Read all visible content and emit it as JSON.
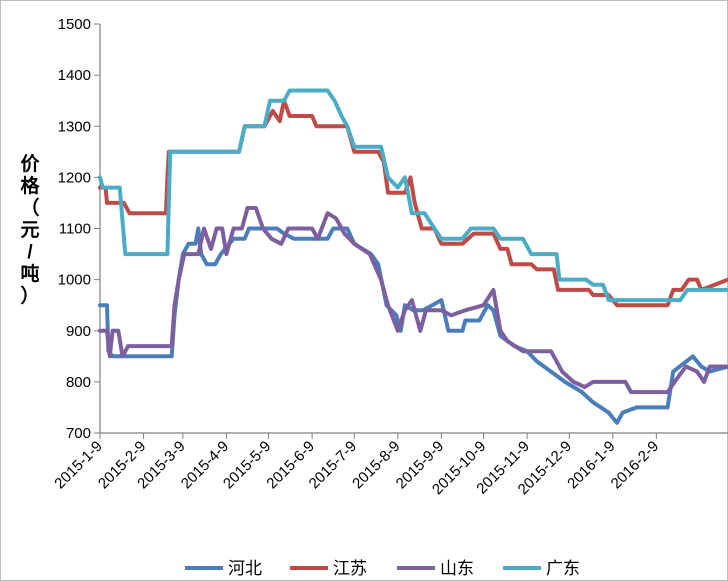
{
  "chart_data": {
    "type": "line",
    "title": "",
    "ylabel": "价格（元/吨）",
    "xlabel": "",
    "ylim": [
      700,
      1500
    ],
    "yticks": [
      700,
      800,
      900,
      1000,
      1100,
      1200,
      1300,
      1400,
      1500
    ],
    "x_range": [
      "2015-01-09",
      "2016-03-31"
    ],
    "x_tick_labels": [
      "2015-1-9",
      "2015-2-9",
      "2015-3-9",
      "2015-4-9",
      "2015-5-9",
      "2015-6-9",
      "2015-7-9",
      "2015-8-9",
      "2015-9-9",
      "2015-10-9",
      "2015-11-9",
      "2015-12-9",
      "2016-1-9",
      "2016-2-9"
    ],
    "x_tick_dates": [
      "2015-01-09",
      "2015-02-09",
      "2015-03-09",
      "2015-04-09",
      "2015-05-09",
      "2015-06-09",
      "2015-07-09",
      "2015-08-09",
      "2015-09-09",
      "2015-10-09",
      "2015-11-09",
      "2015-12-09",
      "2016-01-09",
      "2016-02-09"
    ],
    "grid": false,
    "legend_position": "bottom",
    "series": [
      {
        "name": "河北",
        "color": "#4a7ebb",
        "points": [
          [
            "2015-01-09",
            950
          ],
          [
            "2015-01-14",
            950
          ],
          [
            "2015-01-15",
            860
          ],
          [
            "2015-01-18",
            850
          ],
          [
            "2015-02-20",
            850
          ],
          [
            "2015-03-01",
            850
          ],
          [
            "2015-03-03",
            930
          ],
          [
            "2015-03-06",
            1000
          ],
          [
            "2015-03-09",
            1050
          ],
          [
            "2015-03-13",
            1070
          ],
          [
            "2015-03-18",
            1070
          ],
          [
            "2015-03-20",
            1100
          ],
          [
            "2015-03-22",
            1050
          ],
          [
            "2015-03-26",
            1030
          ],
          [
            "2015-04-01",
            1030
          ],
          [
            "2015-04-05",
            1050
          ],
          [
            "2015-04-14",
            1080
          ],
          [
            "2015-04-22",
            1080
          ],
          [
            "2015-04-25",
            1100
          ],
          [
            "2015-05-15",
            1100
          ],
          [
            "2015-05-20",
            1090
          ],
          [
            "2015-05-27",
            1080
          ],
          [
            "2015-06-20",
            1080
          ],
          [
            "2015-06-24",
            1100
          ],
          [
            "2015-07-04",
            1100
          ],
          [
            "2015-07-09",
            1070
          ],
          [
            "2015-07-21",
            1050
          ],
          [
            "2015-07-26",
            1030
          ],
          [
            "2015-08-01",
            950
          ],
          [
            "2015-08-08",
            930
          ],
          [
            "2015-08-11",
            900
          ],
          [
            "2015-08-14",
            950
          ],
          [
            "2015-08-20",
            940
          ],
          [
            "2015-08-27",
            940
          ],
          [
            "2015-09-09",
            960
          ],
          [
            "2015-09-14",
            900
          ],
          [
            "2015-09-24",
            900
          ],
          [
            "2015-09-26",
            920
          ],
          [
            "2015-10-06",
            920
          ],
          [
            "2015-10-12",
            950
          ],
          [
            "2015-10-16",
            940
          ],
          [
            "2015-10-21",
            890
          ],
          [
            "2015-10-31",
            870
          ],
          [
            "2015-11-09",
            860
          ],
          [
            "2015-11-16",
            840
          ],
          [
            "2015-11-26",
            820
          ],
          [
            "2015-12-06",
            800
          ],
          [
            "2015-12-12",
            790
          ],
          [
            "2015-12-18",
            780
          ],
          [
            "2015-12-26",
            760
          ],
          [
            "2016-01-06",
            740
          ],
          [
            "2016-01-12",
            720
          ],
          [
            "2016-01-16",
            740
          ],
          [
            "2016-01-26",
            750
          ],
          [
            "2016-02-17",
            750
          ],
          [
            "2016-02-21",
            820
          ],
          [
            "2016-03-06",
            850
          ],
          [
            "2016-03-12",
            830
          ],
          [
            "2016-03-18",
            820
          ],
          [
            "2016-03-31",
            830
          ]
        ]
      },
      {
        "name": "江苏",
        "color": "#be4b48",
        "points": [
          [
            "2015-01-09",
            1180
          ],
          [
            "2015-01-13",
            1180
          ],
          [
            "2015-01-14",
            1150
          ],
          [
            "2015-01-26",
            1150
          ],
          [
            "2015-01-30",
            1130
          ],
          [
            "2015-02-25",
            1130
          ],
          [
            "2015-02-26",
            1200
          ],
          [
            "2015-02-27",
            1250
          ],
          [
            "2015-04-18",
            1250
          ],
          [
            "2015-04-22",
            1300
          ],
          [
            "2015-05-06",
            1300
          ],
          [
            "2015-05-12",
            1330
          ],
          [
            "2015-05-17",
            1310
          ],
          [
            "2015-05-20",
            1350
          ],
          [
            "2015-05-24",
            1320
          ],
          [
            "2015-06-09",
            1320
          ],
          [
            "2015-06-12",
            1300
          ],
          [
            "2015-07-04",
            1300
          ],
          [
            "2015-07-09",
            1250
          ],
          [
            "2015-07-26",
            1250
          ],
          [
            "2015-07-30",
            1230
          ],
          [
            "2015-08-02",
            1170
          ],
          [
            "2015-08-14",
            1170
          ],
          [
            "2015-08-18",
            1200
          ],
          [
            "2015-08-21",
            1150
          ],
          [
            "2015-08-26",
            1100
          ],
          [
            "2015-09-04",
            1100
          ],
          [
            "2015-09-09",
            1070
          ],
          [
            "2015-09-24",
            1070
          ],
          [
            "2015-10-02",
            1090
          ],
          [
            "2015-10-16",
            1090
          ],
          [
            "2015-10-21",
            1060
          ],
          [
            "2015-10-26",
            1060
          ],
          [
            "2015-10-29",
            1030
          ],
          [
            "2015-11-12",
            1030
          ],
          [
            "2015-11-16",
            1020
          ],
          [
            "2015-11-28",
            1020
          ],
          [
            "2015-12-01",
            980
          ],
          [
            "2015-12-23",
            980
          ],
          [
            "2015-12-26",
            970
          ],
          [
            "2016-01-06",
            970
          ],
          [
            "2016-01-12",
            950
          ],
          [
            "2016-02-17",
            950
          ],
          [
            "2016-02-21",
            980
          ],
          [
            "2016-02-27",
            980
          ],
          [
            "2016-03-03",
            1000
          ],
          [
            "2016-03-09",
            1000
          ],
          [
            "2016-03-12",
            980
          ],
          [
            "2016-03-31",
            1000
          ]
        ]
      },
      {
        "name": "山东",
        "color": "#7d5fa0",
        "points": [
          [
            "2015-01-09",
            900
          ],
          [
            "2015-01-14",
            900
          ],
          [
            "2015-01-16",
            850
          ],
          [
            "2015-01-18",
            900
          ],
          [
            "2015-01-22",
            900
          ],
          [
            "2015-01-25",
            850
          ],
          [
            "2015-01-29",
            870
          ],
          [
            "2015-03-01",
            870
          ],
          [
            "2015-03-03",
            950
          ],
          [
            "2015-03-06",
            1000
          ],
          [
            "2015-03-10",
            1050
          ],
          [
            "2015-03-20",
            1050
          ],
          [
            "2015-03-24",
            1100
          ],
          [
            "2015-03-29",
            1060
          ],
          [
            "2015-04-02",
            1100
          ],
          [
            "2015-04-06",
            1100
          ],
          [
            "2015-04-09",
            1050
          ],
          [
            "2015-04-14",
            1100
          ],
          [
            "2015-04-20",
            1100
          ],
          [
            "2015-04-24",
            1140
          ],
          [
            "2015-04-30",
            1140
          ],
          [
            "2015-05-05",
            1100
          ],
          [
            "2015-05-11",
            1080
          ],
          [
            "2015-05-18",
            1070
          ],
          [
            "2015-05-23",
            1100
          ],
          [
            "2015-06-09",
            1100
          ],
          [
            "2015-06-13",
            1080
          ],
          [
            "2015-06-20",
            1130
          ],
          [
            "2015-06-26",
            1120
          ],
          [
            "2015-07-02",
            1090
          ],
          [
            "2015-07-09",
            1070
          ],
          [
            "2015-07-20",
            1050
          ],
          [
            "2015-07-28",
            1000
          ],
          [
            "2015-08-02",
            950
          ],
          [
            "2015-08-09",
            900
          ],
          [
            "2015-08-14",
            940
          ],
          [
            "2015-08-19",
            960
          ],
          [
            "2015-08-25",
            900
          ],
          [
            "2015-08-29",
            940
          ],
          [
            "2015-09-09",
            940
          ],
          [
            "2015-09-16",
            930
          ],
          [
            "2015-09-26",
            940
          ],
          [
            "2015-10-09",
            950
          ],
          [
            "2015-10-16",
            980
          ],
          [
            "2015-10-21",
            900
          ],
          [
            "2015-10-26",
            880
          ],
          [
            "2015-11-06",
            860
          ],
          [
            "2015-11-26",
            860
          ],
          [
            "2015-12-04",
            820
          ],
          [
            "2015-12-12",
            800
          ],
          [
            "2015-12-20",
            790
          ],
          [
            "2015-12-26",
            800
          ],
          [
            "2016-01-18",
            800
          ],
          [
            "2016-01-22",
            780
          ],
          [
            "2016-02-17",
            780
          ],
          [
            "2016-02-22",
            800
          ],
          [
            "2016-03-01",
            830
          ],
          [
            "2016-03-09",
            820
          ],
          [
            "2016-03-14",
            800
          ],
          [
            "2016-03-18",
            830
          ],
          [
            "2016-03-31",
            830
          ]
        ]
      },
      {
        "name": "广东",
        "color": "#4bacc6",
        "points": [
          [
            "2015-01-09",
            1200
          ],
          [
            "2015-01-11",
            1180
          ],
          [
            "2015-01-23",
            1180
          ],
          [
            "2015-01-27",
            1050
          ],
          [
            "2015-02-26",
            1050
          ],
          [
            "2015-02-28",
            1250
          ],
          [
            "2015-04-18",
            1250
          ],
          [
            "2015-04-22",
            1300
          ],
          [
            "2015-05-06",
            1300
          ],
          [
            "2015-05-10",
            1350
          ],
          [
            "2015-05-20",
            1350
          ],
          [
            "2015-05-24",
            1370
          ],
          [
            "2015-06-20",
            1370
          ],
          [
            "2015-06-25",
            1350
          ],
          [
            "2015-06-30",
            1320
          ],
          [
            "2015-07-04",
            1300
          ],
          [
            "2015-07-09",
            1260
          ],
          [
            "2015-07-28",
            1260
          ],
          [
            "2015-08-02",
            1200
          ],
          [
            "2015-08-09",
            1180
          ],
          [
            "2015-08-14",
            1200
          ],
          [
            "2015-08-19",
            1130
          ],
          [
            "2015-08-28",
            1130
          ],
          [
            "2015-09-04",
            1100
          ],
          [
            "2015-09-09",
            1080
          ],
          [
            "2015-09-24",
            1080
          ],
          [
            "2015-09-30",
            1100
          ],
          [
            "2015-10-16",
            1100
          ],
          [
            "2015-10-21",
            1080
          ],
          [
            "2015-11-06",
            1080
          ],
          [
            "2015-11-12",
            1050
          ],
          [
            "2015-11-30",
            1050
          ],
          [
            "2015-12-02",
            1000
          ],
          [
            "2015-12-21",
            1000
          ],
          [
            "2015-12-26",
            990
          ],
          [
            "2016-01-02",
            990
          ],
          [
            "2016-01-06",
            960
          ],
          [
            "2016-02-26",
            960
          ],
          [
            "2016-03-02",
            980
          ],
          [
            "2016-03-31",
            980
          ]
        ]
      }
    ]
  }
}
